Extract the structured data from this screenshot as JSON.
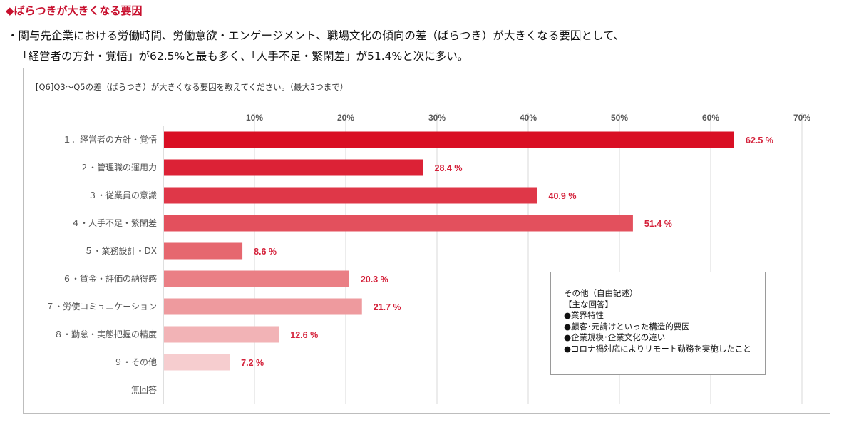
{
  "heading": "◆ばらつきが大きくなる要因",
  "summary": {
    "line1": "・関与先企業における労働時間、労働意欲・エンゲージメント、職場文化の傾向の差（ばらつき）が大きくなる要因として、",
    "line2": "「経営者の方針・覚悟」が62.5%と最も多く、「人手不足・繁閑差」が51.4%と次に多い。"
  },
  "chart_data": {
    "type": "bar",
    "orientation": "horizontal",
    "title": "[Q6]Q3～Q5の差（ばらつき）が大きくなる要因を教えてください。（最大3つまで）",
    "categories": [
      "１．経営者の方針・覚悟",
      "２・管理職の運用力",
      "３・従業員の意識",
      "４・人手不足・繁閑差",
      "５・業務設計・DX",
      "６・賃金・評価の納得感",
      "７・労使コミュニケーション",
      "８・勤怠・実態把握の精度",
      "９・その他",
      "無回答"
    ],
    "values": [
      62.5,
      28.4,
      40.9,
      51.4,
      8.6,
      20.3,
      21.7,
      12.6,
      7.2,
      null
    ],
    "value_labels": [
      "62.5 %",
      "28.4 %",
      "40.9 %",
      "51.4 %",
      "8.6 %",
      "20.3 %",
      "21.7 %",
      "12.6 %",
      "7.2 %",
      ""
    ],
    "bar_colors": [
      "#d90f24",
      "#dc2236",
      "#df3748",
      "#e3505d",
      "#e6676f",
      "#ea7f85",
      "#ee9a9e",
      "#f2b3b6",
      "#f6cdcf",
      "#f6cdcf"
    ],
    "label_color": "#d4213a",
    "xaxis": {
      "ticks": [
        10,
        20,
        30,
        40,
        50,
        60,
        70
      ],
      "tick_labels": [
        "10%",
        "20%",
        "30%",
        "40%",
        "50%",
        "60%",
        "70%"
      ],
      "range": [
        0,
        70
      ],
      "position": "top"
    },
    "grid": true,
    "legend": "none"
  },
  "note": {
    "title": "その他（自由記述）",
    "subtitle": "【主な回答】",
    "items": [
      "●業界特性",
      "●顧客･元請けといった構造的要因",
      "●企業規模･企業文化の違い",
      "●コロナ禍対応によりリモート勤務を実施したこと"
    ]
  }
}
